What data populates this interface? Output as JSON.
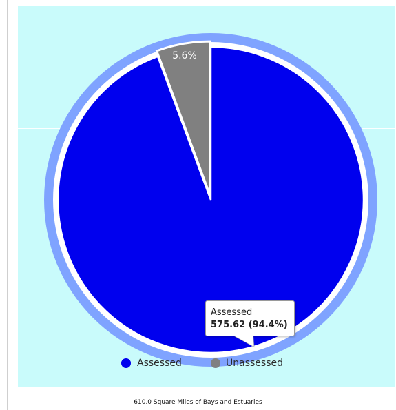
{
  "chart_data": {
    "type": "pie",
    "slices": [
      {
        "name": "Assessed",
        "value": 575.62,
        "percent": 94.4,
        "color": "#0000ee"
      },
      {
        "name": "Unassessed",
        "value": 34.38,
        "percent": 5.6,
        "color": "#808080"
      }
    ],
    "slice_labels": [
      "5.6%"
    ],
    "legend": [
      "Assessed",
      "Unassessed"
    ],
    "legend_position": "bottom",
    "tooltip": {
      "series": "Assessed",
      "value_text": "575.62 (94.4%)"
    },
    "title": "",
    "subtitle": "",
    "caption": "610.0 Square Miles of Bays and Estuaries"
  },
  "colors": {
    "background": "#c9fbfb",
    "assessed": "#0000ee",
    "unassessed": "#808080",
    "outer_ring": "#7fa3ff"
  }
}
